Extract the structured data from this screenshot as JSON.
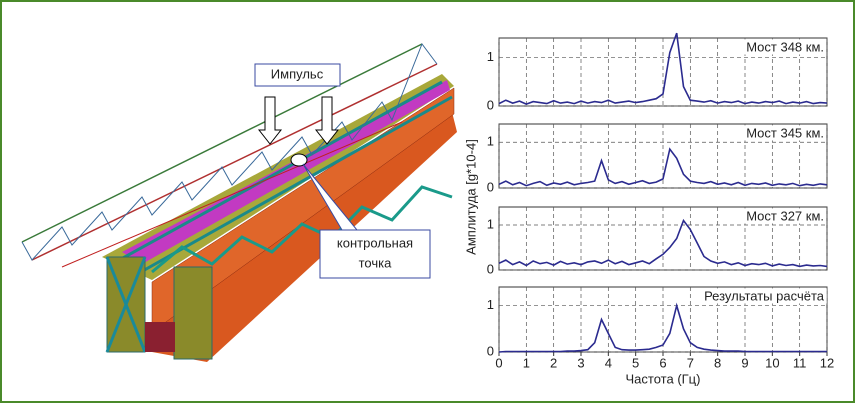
{
  "figure": {
    "impulse": "Импульс",
    "control_point": [
      "контрольная",
      "точка"
    ],
    "ylabel": "Амплитуда [g*10-4]",
    "xlabel": "Частота (Гц)"
  },
  "chart_data": [
    {
      "type": "line",
      "title": "Мост 348 км.",
      "color": "#2b2b8f",
      "xlim": [
        0,
        12
      ],
      "ylim": [
        0,
        1.4
      ],
      "xticks": [
        0,
        1,
        2,
        3,
        4,
        5,
        6,
        7,
        8,
        9,
        10,
        11,
        12
      ],
      "yticks": [
        0,
        1
      ],
      "grid": true,
      "x": [
        0,
        0.25,
        0.5,
        0.75,
        1,
        1.25,
        1.5,
        1.75,
        2,
        2.25,
        2.5,
        2.75,
        3,
        3.25,
        3.5,
        3.75,
        4,
        4.25,
        4.5,
        4.75,
        5,
        5.25,
        5.5,
        5.75,
        6,
        6.25,
        6.5,
        6.75,
        7,
        7.25,
        7.5,
        7.75,
        8,
        8.25,
        8.5,
        8.75,
        9,
        9.25,
        9.5,
        9.75,
        10,
        10.25,
        10.5,
        10.75,
        11,
        11.25,
        11.5,
        11.75,
        12
      ],
      "values": [
        0.05,
        0.12,
        0.06,
        0.1,
        0.04,
        0.09,
        0.07,
        0.05,
        0.11,
        0.06,
        0.08,
        0.05,
        0.1,
        0.06,
        0.09,
        0.07,
        0.12,
        0.06,
        0.08,
        0.1,
        0.07,
        0.09,
        0.12,
        0.15,
        0.25,
        1.1,
        1.5,
        0.4,
        0.12,
        0.1,
        0.08,
        0.11,
        0.06,
        0.09,
        0.07,
        0.1,
        0.05,
        0.08,
        0.06,
        0.09,
        0.07,
        0.1,
        0.05,
        0.08,
        0.06,
        0.09,
        0.05,
        0.07,
        0.06
      ]
    },
    {
      "type": "line",
      "title": "Мост 345 км.",
      "color": "#2b2b8f",
      "xlim": [
        0,
        12
      ],
      "ylim": [
        0,
        1.4
      ],
      "xticks": [
        0,
        1,
        2,
        3,
        4,
        5,
        6,
        7,
        8,
        9,
        10,
        11,
        12
      ],
      "yticks": [
        0,
        1
      ],
      "grid": true,
      "x": [
        0,
        0.25,
        0.5,
        0.75,
        1,
        1.25,
        1.5,
        1.75,
        2,
        2.25,
        2.5,
        2.75,
        3,
        3.25,
        3.5,
        3.75,
        4,
        4.25,
        4.5,
        4.75,
        5,
        5.25,
        5.5,
        5.75,
        6,
        6.25,
        6.5,
        6.75,
        7,
        7.25,
        7.5,
        7.75,
        8,
        8.25,
        8.5,
        8.75,
        9,
        9.25,
        9.5,
        9.75,
        10,
        10.25,
        10.5,
        10.75,
        11,
        11.25,
        11.5,
        11.75,
        12
      ],
      "values": [
        0.08,
        0.15,
        0.07,
        0.12,
        0.05,
        0.1,
        0.14,
        0.06,
        0.11,
        0.08,
        0.13,
        0.07,
        0.1,
        0.12,
        0.15,
        0.6,
        0.18,
        0.1,
        0.14,
        0.08,
        0.12,
        0.16,
        0.1,
        0.13,
        0.2,
        0.85,
        0.65,
        0.3,
        0.15,
        0.12,
        0.1,
        0.14,
        0.08,
        0.11,
        0.07,
        0.12,
        0.06,
        0.1,
        0.08,
        0.11,
        0.06,
        0.09,
        0.07,
        0.1,
        0.05,
        0.08,
        0.06,
        0.09,
        0.07
      ]
    },
    {
      "type": "line",
      "title": "Мост 327 км.",
      "color": "#2b2b8f",
      "xlim": [
        0,
        12
      ],
      "ylim": [
        0,
        1.4
      ],
      "xticks": [
        0,
        1,
        2,
        3,
        4,
        5,
        6,
        7,
        8,
        9,
        10,
        11,
        12
      ],
      "yticks": [
        0,
        1
      ],
      "grid": true,
      "x": [
        0,
        0.25,
        0.5,
        0.75,
        1,
        1.25,
        1.5,
        1.75,
        2,
        2.25,
        2.5,
        2.75,
        3,
        3.25,
        3.5,
        3.75,
        4,
        4.25,
        4.5,
        4.75,
        5,
        5.25,
        5.5,
        5.75,
        6,
        6.25,
        6.5,
        6.75,
        7,
        7.25,
        7.5,
        7.75,
        8,
        8.25,
        8.5,
        8.75,
        9,
        9.25,
        9.5,
        9.75,
        10,
        10.25,
        10.5,
        10.75,
        11,
        11.25,
        11.5,
        11.75,
        12
      ],
      "values": [
        0.15,
        0.22,
        0.12,
        0.18,
        0.1,
        0.2,
        0.14,
        0.17,
        0.11,
        0.19,
        0.13,
        0.16,
        0.12,
        0.18,
        0.2,
        0.15,
        0.22,
        0.14,
        0.19,
        0.12,
        0.16,
        0.2,
        0.14,
        0.25,
        0.35,
        0.5,
        0.7,
        1.1,
        0.9,
        0.6,
        0.3,
        0.2,
        0.15,
        0.18,
        0.12,
        0.16,
        0.1,
        0.14,
        0.12,
        0.15,
        0.09,
        0.13,
        0.1,
        0.12,
        0.08,
        0.11,
        0.09,
        0.1,
        0.08
      ]
    },
    {
      "type": "line",
      "title": "Результаты расчёта",
      "color": "#2b2b8f",
      "xlim": [
        0,
        12
      ],
      "ylim": [
        0,
        1.4
      ],
      "xticks": [
        0,
        1,
        2,
        3,
        4,
        5,
        6,
        7,
        8,
        9,
        10,
        11,
        12
      ],
      "yticks": [
        0,
        1
      ],
      "grid": true,
      "x": [
        0,
        0.25,
        0.5,
        0.75,
        1,
        1.25,
        1.5,
        1.75,
        2,
        2.25,
        2.5,
        2.75,
        3,
        3.25,
        3.5,
        3.75,
        4,
        4.25,
        4.5,
        4.75,
        5,
        5.25,
        5.5,
        5.75,
        6,
        6.25,
        6.5,
        6.75,
        7,
        7.25,
        7.5,
        7.75,
        8,
        8.25,
        8.5,
        8.75,
        9,
        9.25,
        9.5,
        9.75,
        10,
        10.25,
        10.5,
        10.75,
        11,
        11.25,
        11.5,
        11.75,
        12
      ],
      "values": [
        0,
        0.01,
        0.01,
        0.01,
        0.01,
        0.01,
        0.01,
        0.01,
        0.01,
        0.01,
        0.02,
        0.02,
        0.03,
        0.05,
        0.2,
        0.7,
        0.4,
        0.1,
        0.05,
        0.04,
        0.04,
        0.05,
        0.06,
        0.1,
        0.15,
        0.4,
        1.0,
        0.5,
        0.2,
        0.1,
        0.06,
        0.04,
        0.03,
        0.02,
        0.02,
        0.02,
        0.01,
        0.01,
        0.01,
        0.01,
        0.01,
        0.01,
        0.01,
        0.01,
        0.01,
        0.01,
        0.01,
        0.01,
        0.01
      ]
    }
  ]
}
